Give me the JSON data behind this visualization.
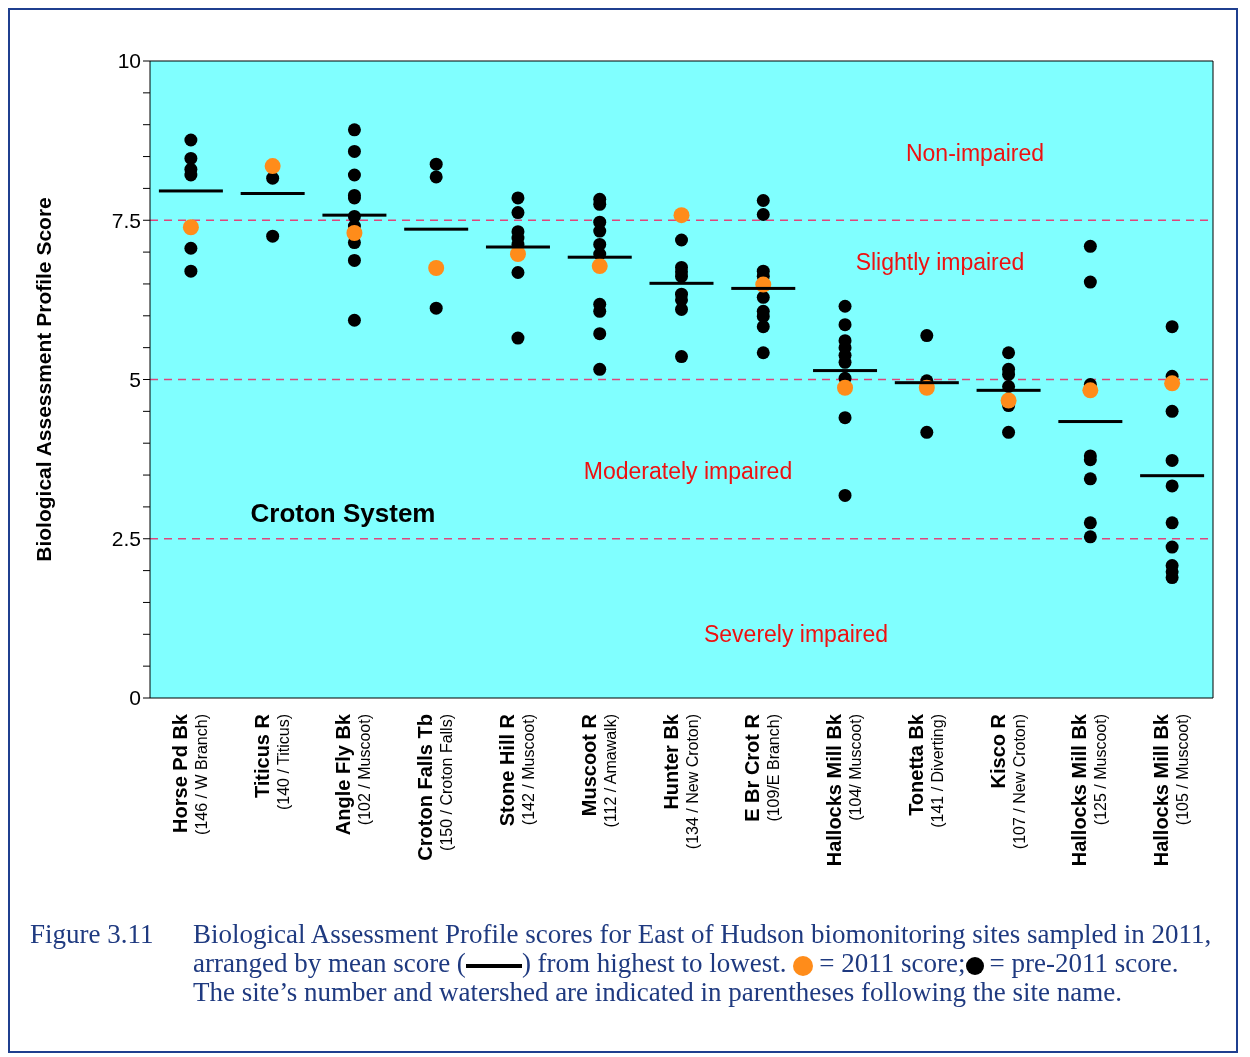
{
  "chart_data": {
    "type": "scatter",
    "ylabel": "Biological Assessment Profile Score",
    "categories": [
      "Horse Pd Bk\n(146 / W Branch)",
      "Titicus R\n(140 / Titicus)",
      "Angle Fly Bk\n(102 / Muscoot)",
      "Croton Falls Tb\n(150 / Croton Falls)",
      "Stone Hill R\n(142 / Muscoot)",
      "Muscoot R\n(112 / Amawalk)",
      "Hunter Bk\n(134 / New Croton)",
      "E Br Crot R\n(109/E Branch)",
      "Hallocks Mill Bk\n(104/ Muscoot)",
      "Tonetta Bk\n(141 / Diverting)",
      "Kisco R\n(107 / New Croton)",
      "Hallocks Mill Bk\n(125 / Muscoot)",
      "Hallocks Mill Bk\n(105 / Muscoot)"
    ],
    "series": [
      {
        "marker": "circle",
        "color": "#000000",
        "x": [
          "Horse Pd Bk\n(146 / W Branch)",
          "Horse Pd Bk\n(146 / W Branch)",
          "Horse Pd Bk\n(146 / W Branch)",
          "Horse Pd Bk\n(146 / W Branch)",
          "Horse Pd Bk\n(146 / W Branch)",
          "Horse Pd Bk\n(146 / W Branch)",
          "Titicus R\n(140 / Titicus)",
          "Titicus R\n(140 / Titicus)",
          "Angle Fly Bk\n(102 / Muscoot)",
          "Angle Fly Bk\n(102 / Muscoot)",
          "Angle Fly Bk\n(102 / Muscoot)",
          "Angle Fly Bk\n(102 / Muscoot)",
          "Angle Fly Bk\n(102 / Muscoot)",
          "Angle Fly Bk\n(102 / Muscoot)",
          "Angle Fly Bk\n(102 / Muscoot)",
          "Angle Fly Bk\n(102 / Muscoot)",
          "Angle Fly Bk\n(102 / Muscoot)",
          "Angle Fly Bk\n(102 / Muscoot)",
          "Croton Falls Tb\n(150 / Croton Falls)",
          "Croton Falls Tb\n(150 / Croton Falls)",
          "Croton Falls Tb\n(150 / Croton Falls)",
          "Stone Hill R\n(142 / Muscoot)",
          "Stone Hill R\n(142 / Muscoot)",
          "Stone Hill R\n(142 / Muscoot)",
          "Stone Hill R\n(142 / Muscoot)",
          "Stone Hill R\n(142 / Muscoot)",
          "Stone Hill R\n(142 / Muscoot)",
          "Stone Hill R\n(142 / Muscoot)",
          "Muscoot R\n(112 / Amawalk)",
          "Muscoot R\n(112 / Amawalk)",
          "Muscoot R\n(112 / Amawalk)",
          "Muscoot R\n(112 / Amawalk)",
          "Muscoot R\n(112 / Amawalk)",
          "Muscoot R\n(112 / Amawalk)",
          "Muscoot R\n(112 / Amawalk)",
          "Muscoot R\n(112 / Amawalk)",
          "Muscoot R\n(112 / Amawalk)",
          "Muscoot R\n(112 / Amawalk)",
          "Hunter Bk\n(134 / New Croton)",
          "Hunter Bk\n(134 / New Croton)",
          "Hunter Bk\n(134 / New Croton)",
          "Hunter Bk\n(134 / New Croton)",
          "Hunter Bk\n(134 / New Croton)",
          "Hunter Bk\n(134 / New Croton)",
          "Hunter Bk\n(134 / New Croton)",
          "Hunter Bk\n(134 / New Croton)",
          "E Br Crot R\n(109/E Branch)",
          "E Br Crot R\n(109/E Branch)",
          "E Br Crot R\n(109/E Branch)",
          "E Br Crot R\n(109/E Branch)",
          "E Br Crot R\n(109/E Branch)",
          "E Br Crot R\n(109/E Branch)",
          "E Br Crot R\n(109/E Branch)",
          "E Br Crot R\n(109/E Branch)",
          "E Br Crot R\n(109/E Branch)",
          "Hallocks Mill Bk\n(104/ Muscoot)",
          "Hallocks Mill Bk\n(104/ Muscoot)",
          "Hallocks Mill Bk\n(104/ Muscoot)",
          "Hallocks Mill Bk\n(104/ Muscoot)",
          "Hallocks Mill Bk\n(104/ Muscoot)",
          "Hallocks Mill Bk\n(104/ Muscoot)",
          "Hallocks Mill Bk\n(104/ Muscoot)",
          "Hallocks Mill Bk\n(104/ Muscoot)",
          "Hallocks Mill Bk\n(104/ Muscoot)",
          "Tonetta Bk\n(141 / Diverting)",
          "Tonetta Bk\n(141 / Diverting)",
          "Tonetta Bk\n(141 / Diverting)",
          "Kisco R\n(107 / New Croton)",
          "Kisco R\n(107 / New Croton)",
          "Kisco R\n(107 / New Croton)",
          "Kisco R\n(107 / New Croton)",
          "Kisco R\n(107 / New Croton)",
          "Kisco R\n(107 / New Croton)",
          "Hallocks Mill Bk\n(125 / Muscoot)",
          "Hallocks Mill Bk\n(125 / Muscoot)",
          "Hallocks Mill Bk\n(125 / Muscoot)",
          "Hallocks Mill Bk\n(125 / Muscoot)",
          "Hallocks Mill Bk\n(125 / Muscoot)",
          "Hallocks Mill Bk\n(125 / Muscoot)",
          "Hallocks Mill Bk\n(125 / Muscoot)",
          "Hallocks Mill Bk\n(125 / Muscoot)",
          "Hallocks Mill Bk\n(105 / Muscoot)",
          "Hallocks Mill Bk\n(105 / Muscoot)",
          "Hallocks Mill Bk\n(105 / Muscoot)",
          "Hallocks Mill Bk\n(105 / Muscoot)",
          "Hallocks Mill Bk\n(105 / Muscoot)",
          "Hallocks Mill Bk\n(105 / Muscoot)",
          "Hallocks Mill Bk\n(105 / Muscoot)",
          "Hallocks Mill Bk\n(105 / Muscoot)",
          "Hallocks Mill Bk\n(105 / Muscoot)",
          "Hallocks Mill Bk\n(105 / Muscoot)"
        ],
        "values": [
          8.76,
          8.47,
          8.3,
          8.21,
          7.06,
          6.7,
          8.16,
          7.25,
          8.92,
          8.58,
          8.21,
          7.89,
          7.85,
          7.56,
          7.41,
          7.15,
          6.87,
          5.93,
          8.38,
          8.18,
          6.12,
          7.85,
          7.62,
          7.32,
          7.22,
          7.12,
          6.68,
          5.65,
          7.83,
          7.75,
          7.47,
          7.33,
          7.12,
          6.97,
          6.18,
          6.07,
          5.72,
          5.16,
          7.19,
          6.76,
          6.69,
          6.62,
          6.34,
          6.25,
          6.1,
          5.36,
          7.81,
          7.59,
          6.7,
          6.62,
          6.29,
          6.07,
          5.99,
          5.83,
          5.42,
          6.15,
          5.86,
          5.61,
          5.5,
          5.38,
          5.27,
          5.02,
          4.4,
          3.18,
          5.69,
          4.98,
          4.17,
          5.42,
          5.16,
          5.08,
          4.89,
          4.59,
          4.17,
          7.09,
          6.53,
          4.92,
          3.8,
          3.74,
          3.44,
          2.75,
          2.53,
          5.83,
          5.05,
          4.5,
          3.73,
          3.33,
          2.75,
          2.37,
          2.08,
          1.98,
          1.89
        ]
      },
      {
        "marker": "circle",
        "color": "#ff8c1a",
        "values": [
          7.39,
          8.35,
          7.3,
          6.75,
          6.97,
          6.78,
          7.58,
          6.49,
          4.87,
          4.87,
          4.67,
          4.83,
          4.94
        ]
      },
      {
        "type": "box",
        "color": "#000000",
        "boxes": [
          {
            "low": 7.96,
            "q1": 7.96,
            "median": 7.96,
            "q3": 7.96,
            "high": 7.96
          },
          {
            "low": 7.92,
            "q1": 7.92,
            "median": 7.92,
            "q3": 7.92,
            "high": 7.92
          },
          {
            "low": 7.58,
            "q1": 7.58,
            "median": 7.58,
            "q3": 7.58,
            "high": 7.58
          },
          {
            "low": 7.36,
            "q1": 7.36,
            "median": 7.36,
            "q3": 7.36,
            "high": 7.36
          },
          {
            "low": 7.08,
            "q1": 7.08,
            "median": 7.08,
            "q3": 7.08,
            "high": 7.08
          },
          {
            "low": 6.92,
            "q1": 6.92,
            "median": 6.92,
            "q3": 6.92,
            "high": 6.92
          },
          {
            "low": 6.51,
            "q1": 6.51,
            "median": 6.51,
            "q3": 6.51,
            "high": 6.51
          },
          {
            "low": 6.43,
            "q1": 6.43,
            "median": 6.43,
            "q3": 6.43,
            "high": 6.43
          },
          {
            "low": 5.14,
            "q1": 5.14,
            "median": 5.14,
            "q3": 5.14,
            "high": 5.14
          },
          {
            "low": 4.95,
            "q1": 4.95,
            "median": 4.95,
            "q3": 4.95,
            "high": 4.95
          },
          {
            "low": 4.83,
            "q1": 4.83,
            "median": 4.83,
            "q3": 4.83,
            "high": 4.83
          },
          {
            "low": 4.34,
            "q1": 4.34,
            "median": 4.34,
            "q3": 4.34,
            "high": 4.34
          },
          {
            "low": 3.49,
            "q1": 3.49,
            "median": 3.49,
            "q3": 3.49,
            "high": 3.49
          }
        ]
      }
    ],
    "ylim": [
      0,
      10
    ],
    "yticks": [
      0,
      {
        "value": 0.5,
        "label": null
      },
      {
        "value": 1,
        "label": null
      },
      {
        "value": 1.5,
        "label": null
      },
      {
        "value": 2,
        "label": null
      },
      2.5,
      {
        "value": 3,
        "label": null
      },
      {
        "value": 3.5,
        "label": null
      },
      {
        "value": 4,
        "label": null
      },
      {
        "value": 4.5,
        "label": null
      },
      5,
      {
        "value": 5.5,
        "label": null
      },
      {
        "value": 6,
        "label": null
      },
      {
        "value": 6.5,
        "label": null
      },
      {
        "value": 7,
        "label": null
      },
      7.5,
      {
        "value": 8,
        "label": null
      },
      {
        "value": 8.5,
        "label": null
      },
      {
        "value": 9,
        "label": null
      },
      {
        "value": 9.5,
        "label": null
      },
      10
    ],
    "ref_lines": [
      {
        "axis": "y",
        "value": 7.5,
        "color": "#e0457b",
        "line_style": "dashed"
      },
      {
        "axis": "y",
        "value": 5,
        "color": "#e0457b",
        "line_style": "dashed"
      },
      {
        "axis": "y",
        "value": 2.5,
        "color": "#e0457b",
        "line_style": "dashed"
      }
    ],
    "annotations": [
      "Non-impaired",
      "Slightly impaired",
      "Moderately impaired",
      "Severely impaired",
      "Croton System",
      "Figure 3.11",
      "Biological Assessment Profile scores for East of Hudson biomonitoring sites sampled in 2011, arranged by mean score (",
      ") from highest to lowest.",
      "= 2011 score;",
      "= pre-2011 score. The site’s number and watershed are indicated in parentheses following the site name."
    ]
  }
}
